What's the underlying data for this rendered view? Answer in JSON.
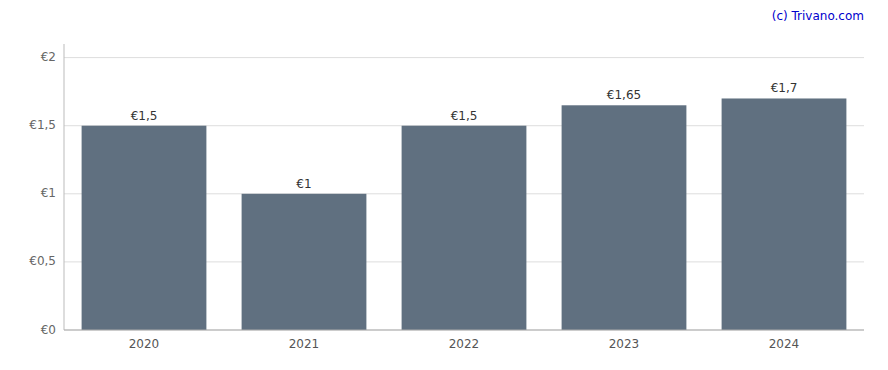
{
  "chart_data": {
    "type": "bar",
    "categories": [
      "2020",
      "2021",
      "2022",
      "2023",
      "2024"
    ],
    "values": [
      1.5,
      1.0,
      1.5,
      1.65,
      1.7
    ],
    "value_labels": [
      "€1,5",
      "€1",
      "€1,5",
      "€1,65",
      "€1,7"
    ],
    "color": "#607080",
    "ylim": [
      0,
      2.1
    ],
    "yticks": [
      {
        "value": 0,
        "label": "€0"
      },
      {
        "value": 0.5,
        "label": "€0,5"
      },
      {
        "value": 1.0,
        "label": "€1"
      },
      {
        "value": 1.5,
        "label": "€1,5"
      },
      {
        "value": 2.0,
        "label": "€2"
      }
    ],
    "grid": true,
    "data_labels": true,
    "annotations": [
      "(c) Trivano.com"
    ]
  }
}
